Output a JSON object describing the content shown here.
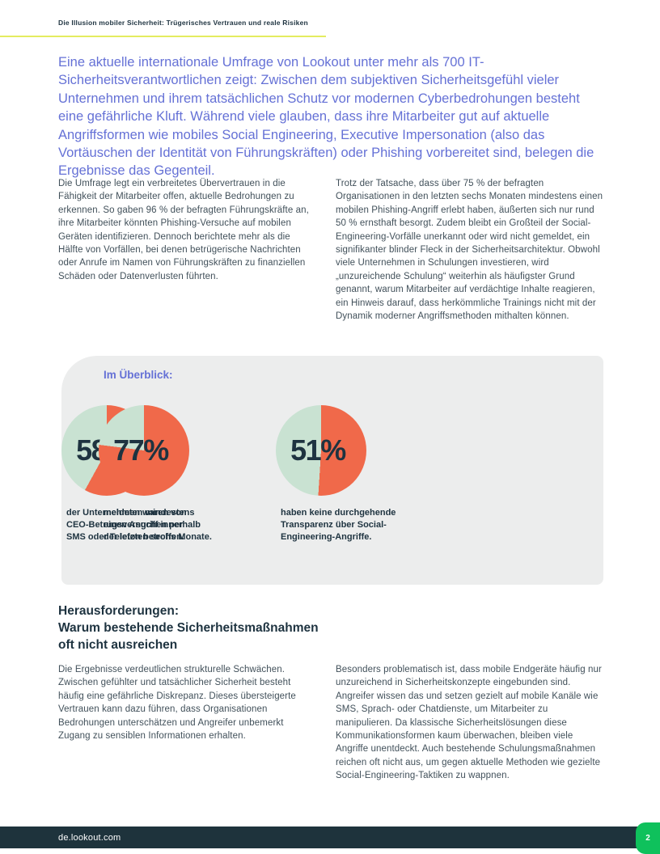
{
  "header": {
    "title": "Die Illusion mobiler Sicherheit: Trügerisches Vertrauen und reale Risiken"
  },
  "intro": {
    "text": "Eine aktuelle internationale Umfrage von Lookout unter mehr als 700 IT-Sicherheitsverantwortlichen zeigt: Zwischen dem subjektiven Sicherheitsgefühl vieler Unternehmen und ihrem tatsächlichen Schutz vor modernen Cyberbedrohungen besteht eine gefährliche Kluft. Während viele glauben, dass ihre Mitarbeiter gut auf aktuelle Angriffsformen wie mobiles Social Engineering, Executive Impersonation (also das Vortäuschen der Identität von Führungskräften) oder Phishing vorbereitet sind, belegen die Ergebnisse das Gegenteil."
  },
  "body_top": {
    "left": "Die Umfrage legt ein verbreitetes Übervertrauen in die Fähigkeit der Mitarbeiter offen, aktuelle Bedrohungen zu erkennen. So gaben 96 % der befragten Führungskräfte an, ihre Mitarbeiter könnten Phishing-Versuche auf mobilen Geräten identifizieren. Dennoch berichtete mehr als die Hälfte von Vorfällen, bei denen betrügerische Nachrichten oder Anrufe im Namen von Führungskräften zu finanziellen Schäden oder Datenverlusten führten.",
    "right": "Trotz der Tatsache, dass über 75 % der befragten Organisationen in den letzten sechs Monaten mindestens einen mobilen Phishing-Angriff erlebt haben, äußerten sich nur rund 50 % ernsthaft besorgt. Zudem bleibt ein Großteil der Social-Engineering-Vorfälle unerkannt oder wird nicht gemeldet, ein signifikanter blinder Fleck in der Sicherheitsarchitektur. Obwohl viele Unternehmen in Schulungen investieren, wird „unzureichende Schulung“ weiterhin als häufigster Grund genannt, warum Mitarbeiter auf verdächtige Inhalte reagieren, ein Hinweis darauf, dass herkömmliche Trainings nicht mit der Dynamik moderner Angriffsmethoden mithalten können."
  },
  "overview_panel": {
    "title": "Im Überblick:"
  },
  "chart_data": [
    {
      "type": "pie",
      "label": "58%",
      "values": [
        58,
        42
      ],
      "slice_colors": [
        "#F0694A",
        "#C9E2D2"
      ],
      "caption": "der Unternehmen waren von\nCEO-Betrugsversuchen per\nSMS oder Telefon betroffen."
    },
    {
      "type": "pie",
      "label": "77%",
      "values": [
        77,
        23
      ],
      "slice_colors": [
        "#F0694A",
        "#C9E2D2"
      ],
      "caption": "meldeten mindestens\neinen Angriff innerhalb\nder letzten sechs Monate."
    },
    {
      "type": "pie",
      "label": "51%",
      "values": [
        51,
        49
      ],
      "slice_colors": [
        "#F0694A",
        "#C9E2D2"
      ],
      "caption": "haben keine durchgehende\nTransparenz über Social-\nEngineering-Angriffe."
    }
  ],
  "challenges": {
    "heading": "Herausforderungen:\nWarum bestehende Sicherheitsmaßnahmen\noft nicht ausreichen",
    "left": "Die Ergebnisse verdeutlichen strukturelle Schwächen. Zwischen gefühlter und tatsächlicher Sicherheit besteht häufig eine gefährliche Diskrepanz. Dieses übersteigerte Vertrauen kann dazu führen, dass Organisationen Bedrohungen unterschätzen und Angreifer unbemerkt Zugang zu sensiblen Informationen erhalten.",
    "right": "Besonders problematisch ist, dass mobile Endgeräte häufig nur unzureichend in Sicherheitskonzepte eingebunden sind. Angreifer wissen das und setzen gezielt auf mobile Kanäle wie SMS, Sprach- oder Chatdienste, um Mitarbeiter zu manipulieren. Da klassische Sicherheitslösungen diese Kommunikationsformen kaum überwachen, bleiben viele Angriffe unentdeckt. Auch bestehende Schulungsmaßnahmen reichen oft nicht aus, um gegen aktuelle Methoden wie gezielte Social-Engineering-Taktiken zu wappnen."
  },
  "footer": {
    "url": "de.lookout.com",
    "page_number": "2"
  },
  "colors": {
    "accent_blue": "#6571D6",
    "heading_dark": "#1E3340",
    "body_text": "#41505A",
    "panel_bg": "#ECEDED",
    "pie_orange": "#F0694A",
    "pie_mint": "#C9E2D2",
    "rule_yellow": "#E4EC60",
    "footer_bg": "#1E333C",
    "page_green": "#0FC15C"
  }
}
